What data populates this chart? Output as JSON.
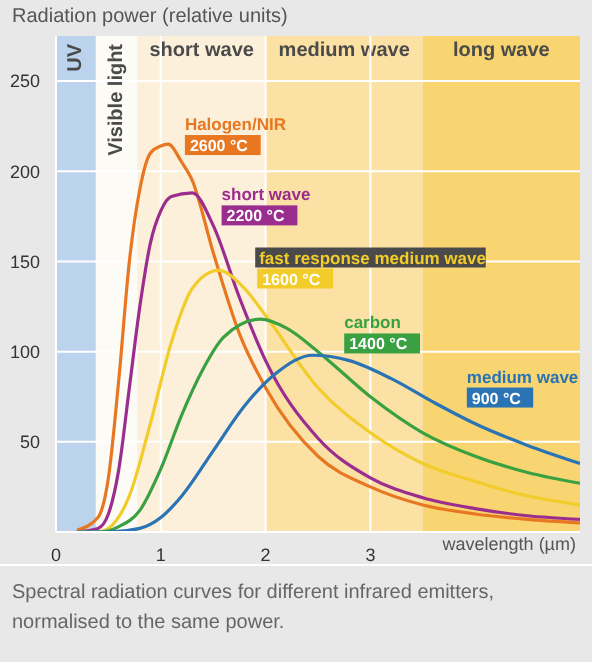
{
  "chart_data": {
    "type": "line",
    "ylabel": "Radiation power (relative units)",
    "xlabel": "wavelength (µm)",
    "xlim": [
      0,
      5
    ],
    "xticks": [
      0,
      1,
      2,
      3
    ],
    "ylim": [
      0,
      275
    ],
    "yticks": [
      50,
      100,
      150,
      200,
      250
    ],
    "grid": true,
    "marker": "none",
    "line_style": "solid",
    "bands": [
      {
        "axis": "x",
        "from": 0,
        "to": 0.38,
        "label": "UV",
        "color": "#bcd3ee"
      },
      {
        "axis": "x",
        "from": 0.38,
        "to": 0.78,
        "label": "Visible light",
        "color": "#fdfbf6"
      },
      {
        "axis": "x",
        "from": 0.78,
        "to": 2,
        "label": "short wave",
        "color": "#fcf0da"
      },
      {
        "axis": "x",
        "from": 2,
        "to": 3.5,
        "label": "medium wave",
        "color": "#fbe2a4"
      },
      {
        "axis": "x",
        "from": 3.5,
        "to": 5,
        "label": "long wave",
        "color": "#f9d571"
      }
    ],
    "series": [
      {
        "name": "Halogen/NIR",
        "color": "#e87722",
        "x": [
          0.2,
          0.4,
          0.5,
          0.6,
          0.7,
          0.8,
          0.9,
          1.0,
          1.07,
          1.2,
          1.3,
          1.5,
          1.75,
          2.0,
          2.5,
          3.0,
          3.5,
          4.0,
          4.5,
          5.0
        ],
        "values": [
          1,
          8,
          30,
          85,
          150,
          190,
          210,
          214,
          215,
          205,
          195,
          155,
          110,
          80,
          42,
          25,
          15,
          10,
          7,
          5
        ]
      },
      {
        "name": "short wave",
        "color": "#9b2d8e",
        "x": [
          0.2,
          0.4,
          0.5,
          0.6,
          0.7,
          0.8,
          0.9,
          1.0,
          1.1,
          1.3,
          1.5,
          1.75,
          2.0,
          2.5,
          3.0,
          3.5,
          4.0,
          4.5,
          5.0
        ],
        "values": [
          0,
          2,
          10,
          35,
          80,
          125,
          160,
          178,
          186,
          188,
          170,
          130,
          95,
          52,
          30,
          19,
          13,
          9,
          7
        ]
      },
      {
        "name": "fast response medium wave",
        "color": "#f2cc2b",
        "x": [
          0.2,
          0.4,
          0.5,
          0.7,
          0.9,
          1.1,
          1.3,
          1.55,
          1.8,
          2.0,
          2.5,
          3.0,
          3.5,
          4.0,
          4.5,
          5.0
        ],
        "values": [
          0,
          0,
          2,
          20,
          60,
          105,
          135,
          145,
          135,
          120,
          80,
          55,
          38,
          28,
          20,
          15
        ]
      },
      {
        "name": "carbon",
        "color": "#3aa142",
        "x": [
          0.2,
          0.4,
          0.6,
          0.8,
          1.0,
          1.2,
          1.4,
          1.6,
          1.95,
          2.2,
          2.5,
          3.0,
          3.5,
          4.0,
          4.5,
          5.0
        ],
        "values": [
          0,
          0,
          3,
          12,
          35,
          65,
          90,
          108,
          118,
          113,
          100,
          75,
          55,
          42,
          33,
          27
        ]
      },
      {
        "name": "medium wave",
        "color": "#2a74b5",
        "x": [
          0.2,
          0.5,
          0.8,
          1.0,
          1.2,
          1.5,
          1.8,
          2.1,
          2.45,
          2.8,
          3.2,
          3.6,
          4.0,
          4.5,
          5.0
        ],
        "values": [
          0,
          0,
          2,
          8,
          20,
          45,
          70,
          88,
          98,
          95,
          85,
          72,
          60,
          48,
          38
        ]
      }
    ],
    "annotations": [
      {
        "text": "2600 °C",
        "x": 1.23,
        "y": 209
      },
      {
        "text": "2200 °C",
        "x": 1.58,
        "y": 170
      },
      {
        "text": "1600 °C",
        "x": 1.92,
        "y": 135
      },
      {
        "text": "1400 °C",
        "x": 2.75,
        "y": 99
      },
      {
        "text": "900 °C",
        "x": 3.92,
        "y": 69
      },
      "Spectral radiation curves for different infrared emitters, normalised to the same power."
    ]
  }
}
